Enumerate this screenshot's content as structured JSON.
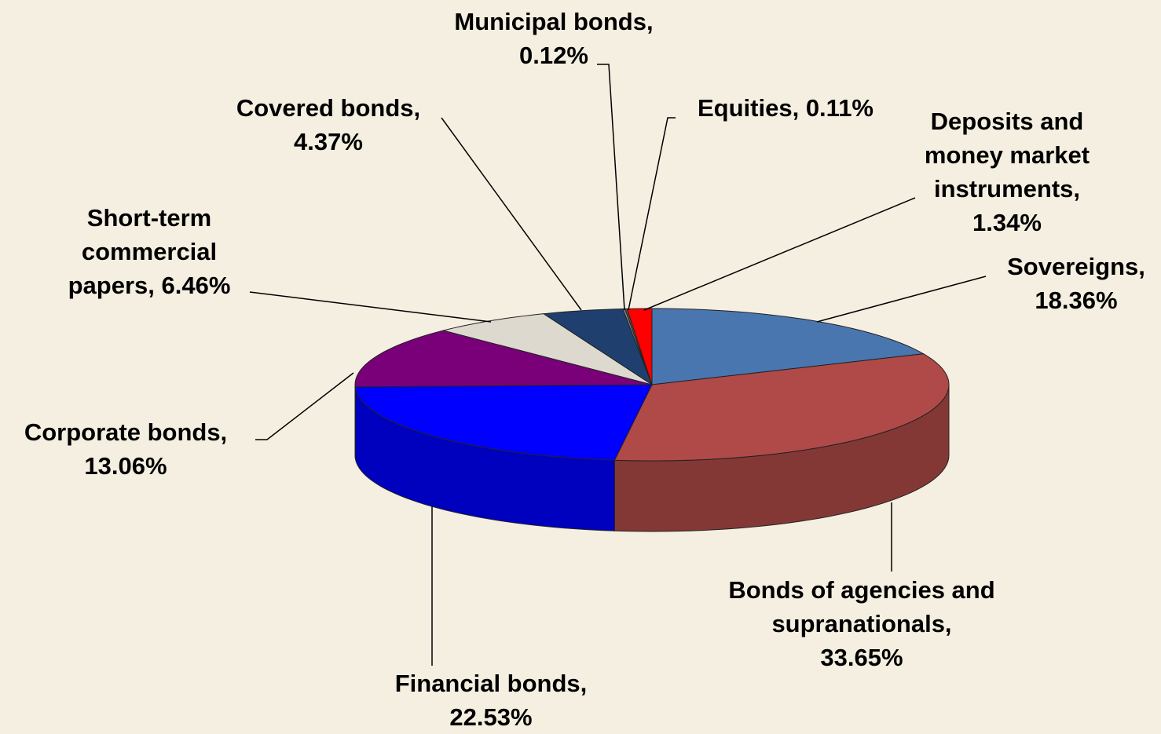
{
  "chart_data": {
    "type": "pie3d",
    "categories": [
      "Sovereigns,",
      "Bonds of agencies and supranationals,",
      "Financial bonds,",
      "Corporate bonds,",
      "Short-term commercial papers,",
      "Covered bonds,",
      "Municipal bonds,",
      "Equities,",
      "Deposits and money market instruments,"
    ],
    "values": [
      18.36,
      33.65,
      22.53,
      13.06,
      6.46,
      4.37,
      0.12,
      0.11,
      1.34
    ],
    "value_labels": [
      "18.36%",
      "33.65%",
      "22.53%",
      "13.06%",
      "6.46%",
      "4.37%",
      "0.12%",
      "0.11%",
      "1.34%"
    ],
    "colors": [
      "#4a76b0",
      "#b04a48",
      "#0000ff",
      "#7a007a",
      "#ddd9cf",
      "#1f3f6f",
      "#8a8a8a",
      "#555555",
      "#ff0000"
    ]
  }
}
